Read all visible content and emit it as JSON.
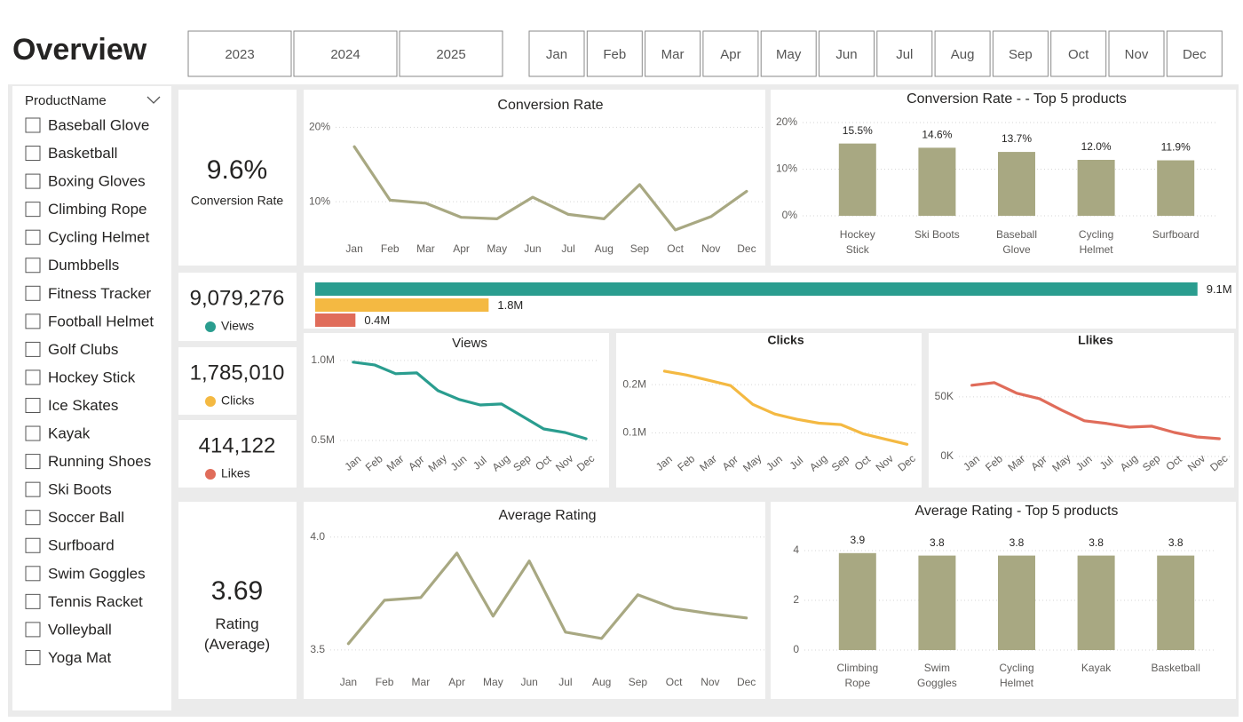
{
  "header": {
    "title": "Overview",
    "years": [
      "2023",
      "2024",
      "2025"
    ],
    "months": [
      "Jan",
      "Feb",
      "Mar",
      "Apr",
      "May",
      "Jun",
      "Jul",
      "Aug",
      "Sep",
      "Oct",
      "Nov",
      "Dec"
    ]
  },
  "slicer": {
    "title": "ProductName",
    "items": [
      "Baseball Glove",
      "Basketball",
      "Boxing Gloves",
      "Climbing Rope",
      "Cycling Helmet",
      "Dumbbells",
      "Fitness Tracker",
      "Football Helmet",
      "Golf Clubs",
      "Hockey Stick",
      "Ice Skates",
      "Kayak",
      "Running Shoes",
      "Ski Boots",
      "Soccer Ball",
      "Surfboard",
      "Swim Goggles",
      "Tennis Racket",
      "Volleyball",
      "Yoga Mat"
    ]
  },
  "kpis": [
    {
      "value": "9.6%",
      "label": "Conversion Rate"
    },
    {
      "value": "9,079,276",
      "label": "Views"
    },
    {
      "value": "1,785,010",
      "label": "Clicks"
    },
    {
      "value": "414,122",
      "label": "Likes"
    },
    {
      "value": "3.69",
      "label": "Rating (Average)"
    }
  ],
  "chart_data": [
    {
      "type": "line",
      "title": "Conversion Rate",
      "color": "#a8a882",
      "grid": true,
      "categories": [
        "Jan",
        "Feb",
        "Mar",
        "Apr",
        "May",
        "Jun",
        "Jul",
        "Aug",
        "Sep",
        "Oct",
        "Nov",
        "Dec"
      ],
      "values": [
        17.4,
        10.2,
        9.8,
        7.9,
        7.7,
        10.6,
        8.3,
        7.7,
        12.3,
        6.2,
        8.0,
        11.4
      ],
      "ylim": [
        5,
        21
      ],
      "yticks": [
        {
          "value": 10,
          "label": "10%"
        },
        {
          "value": 20,
          "label": "20%"
        }
      ]
    },
    {
      "type": "bar",
      "title": "Conversion Rate - - Top 5 products",
      "color": "#a8a882",
      "grid": true,
      "categories": [
        "Hockey Stick",
        "Ski Boots",
        "Baseball Glove",
        "Cycling Helmet",
        "Surfboard"
      ],
      "values": [
        15.5,
        14.6,
        13.7,
        12.0,
        11.9
      ],
      "value_labels": [
        "15.5%",
        "14.6%",
        "13.7%",
        "12.0%",
        "11.9%"
      ],
      "ylim": [
        0,
        20
      ],
      "yticks": [
        {
          "value": 0,
          "label": "0%"
        },
        {
          "value": 10,
          "label": "10%"
        },
        {
          "value": 20,
          "label": "20%"
        }
      ]
    },
    {
      "type": "hbar",
      "categories": [
        null,
        null,
        null
      ],
      "values": [
        9079276,
        1785010,
        414122
      ],
      "value_labels": [
        "9.1M",
        "1.8M",
        "0.4M"
      ],
      "colors": [
        "#2a9d8f",
        "#f4b942",
        "#e06c5a"
      ],
      "xlim": [
        0,
        9100000
      ]
    },
    {
      "type": "line",
      "title": "Views",
      "color": "#2a9d8f",
      "grid": true,
      "categories": [
        "Jan",
        "Feb",
        "Mar",
        "Apr",
        "May",
        "Jun",
        "Jul",
        "Aug",
        "Sep",
        "Oct",
        "Nov",
        "Dec"
      ],
      "values": [
        989000,
        972000,
        917000,
        922000,
        811000,
        756000,
        722000,
        728000,
        650000,
        572000,
        550000,
        511000
      ],
      "ylim": [
        450000,
        1060000
      ],
      "yticks": [
        {
          "value": 500000,
          "label": "0.5M"
        },
        {
          "value": 1000000,
          "label": "1.0M"
        }
      ]
    },
    {
      "type": "line",
      "title": "Clicks",
      "color": "#f4b942",
      "grid": true,
      "categories": [
        "Jan",
        "Feb",
        "Mar",
        "Apr",
        "May",
        "Jun",
        "Jul",
        "Aug",
        "Sep",
        "Oct",
        "Nov",
        "Dec"
      ],
      "values": [
        228000,
        220000,
        209000,
        198000,
        159000,
        139000,
        128000,
        120000,
        117000,
        98000,
        87000,
        76000
      ],
      "ylim": [
        60000,
        250000
      ],
      "yticks": [
        {
          "value": 100000,
          "label": "0.1M"
        },
        {
          "value": 200000,
          "label": "0.2M"
        }
      ]
    },
    {
      "type": "line",
      "title": "Llikes",
      "color": "#e06c5a",
      "grid": true,
      "categories": [
        "Jan",
        "Feb",
        "Mar",
        "Apr",
        "May",
        "Jun",
        "Jul",
        "Aug",
        "Sep",
        "Oct",
        "Nov",
        "Dec"
      ],
      "values": [
        59700,
        61900,
        53000,
        48500,
        38800,
        29900,
        27600,
        24600,
        25400,
        20100,
        16400,
        14900
      ],
      "ylim": [
        0,
        70000
      ],
      "yticks": [
        {
          "value": 0,
          "label": "0K"
        },
        {
          "value": 50000,
          "label": "50K"
        }
      ]
    },
    {
      "type": "line",
      "title": "Average Rating",
      "color": "#a8a882",
      "grid": true,
      "categories": [
        "Jan",
        "Feb",
        "Mar",
        "Apr",
        "May",
        "Jun",
        "Jul",
        "Aug",
        "Sep",
        "Oct",
        "Nov",
        "Dec"
      ],
      "values": [
        3.528,
        3.72,
        3.732,
        3.929,
        3.65,
        3.894,
        3.579,
        3.551,
        3.744,
        3.685,
        3.661,
        3.642
      ],
      "ylim": [
        3.48,
        4.05
      ],
      "yticks": [
        3.5,
        {
          "value": 4,
          "label": "4.0"
        }
      ]
    },
    {
      "type": "bar",
      "title": "Average Rating - Top 5 products",
      "color": "#a8a882",
      "grid": true,
      "categories": [
        "Climbing Rope",
        "Swim Goggles",
        "Cycling Helmet",
        "Kayak",
        "Basketball"
      ],
      "values": [
        3.9,
        3.8,
        3.8,
        3.8,
        3.8
      ],
      "ylim": [
        0,
        4
      ],
      "yticks": [
        0,
        2,
        4
      ]
    }
  ]
}
